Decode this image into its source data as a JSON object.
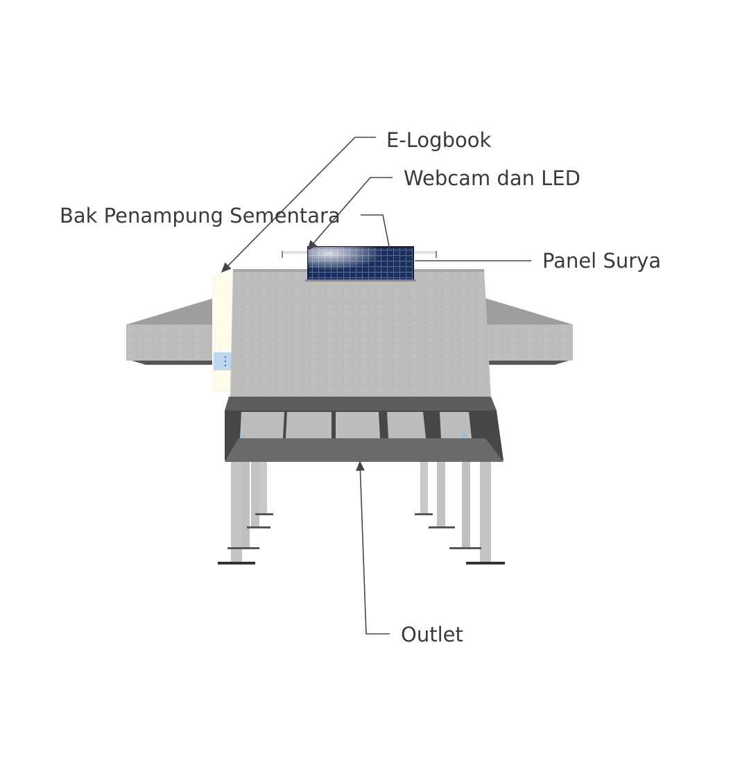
{
  "labels": {
    "elogbook": "E-Logbook",
    "webcam": "Webcam dan LED",
    "bak": "Bak Penampung Sementara",
    "panel": "Panel Surya",
    "outlet": "Outlet"
  },
  "colors": {
    "concrete": "#bdbdbd",
    "concrete_dark": "#a9a9a9",
    "tray_dark": "#4a4a4a",
    "panel_blue": "#1c2f5e",
    "leg": "#c6c6c6",
    "leader_line": "#444444",
    "label_text": "#3a3a3a",
    "elogbook_strip": "#fffbea",
    "screen_blue": "#bcd7f2"
  }
}
